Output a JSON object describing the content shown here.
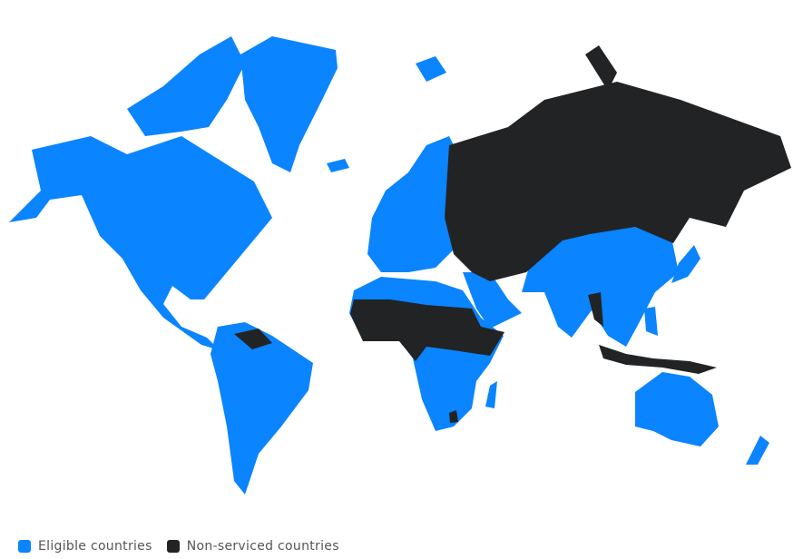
{
  "legend": {
    "items": [
      {
        "label": "Eligible countries",
        "color": "#0A84FF"
      },
      {
        "label": "Non-serviced countries",
        "color": "#222324"
      }
    ]
  },
  "colors": {
    "eligible": "#0A84FF",
    "non_serviced": "#222324",
    "background": "#FFFFFF"
  }
}
